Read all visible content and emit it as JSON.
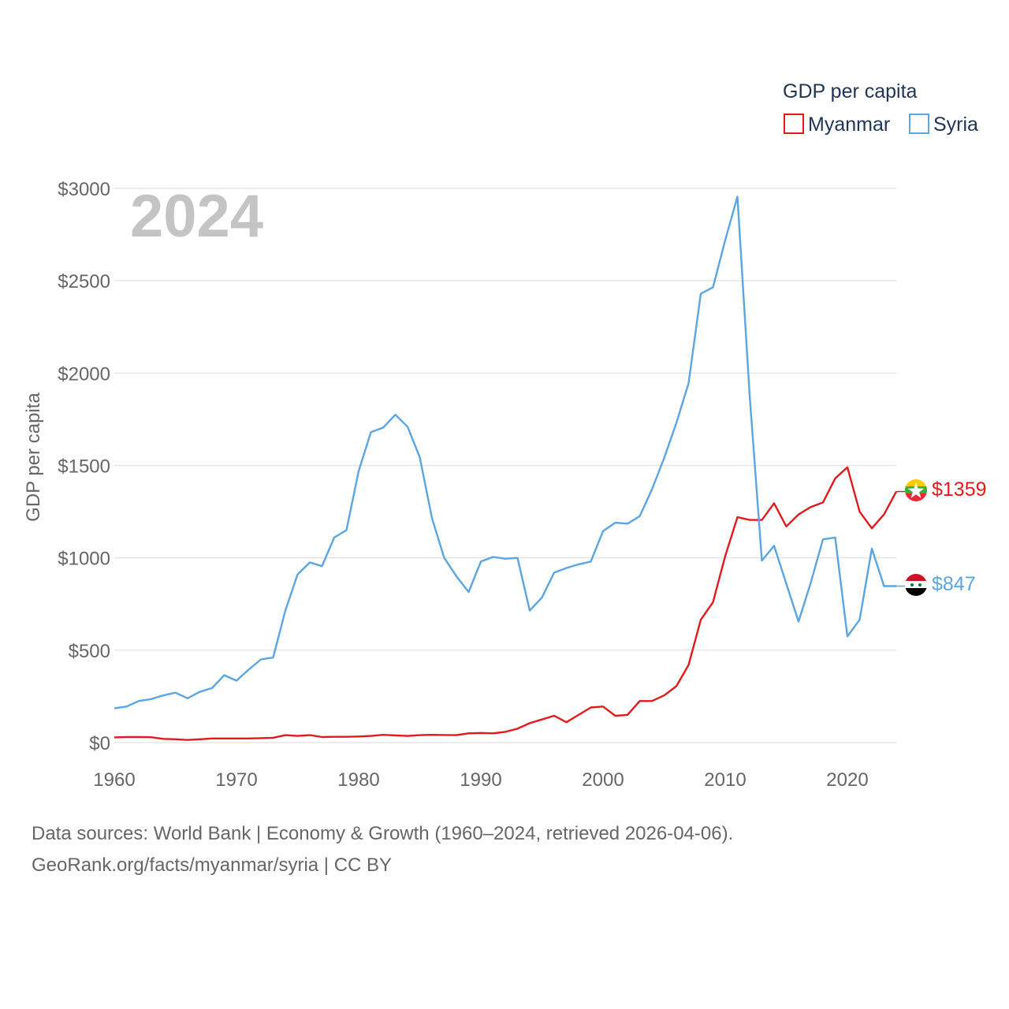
{
  "chart_data": {
    "type": "line",
    "title": "GDP per capita",
    "ylabel": "GDP per capita",
    "xlabel": "",
    "year_label": "2024",
    "xlim": [
      1960,
      2024
    ],
    "ylim": [
      0,
      3000
    ],
    "x_ticks": [
      1960,
      1970,
      1980,
      1990,
      2000,
      2010,
      2020
    ],
    "x_tick_labels": [
      "1960",
      "1970",
      "1980",
      "1990",
      "2000",
      "2010",
      "2020"
    ],
    "y_ticks": [
      0,
      500,
      1000,
      1500,
      2000,
      2500,
      3000
    ],
    "y_tick_labels": [
      "$0",
      "$500",
      "$1000",
      "$1500",
      "$2000",
      "$2500",
      "$3000"
    ],
    "legend_position": "top-right",
    "x": [
      1960,
      1961,
      1962,
      1963,
      1964,
      1965,
      1966,
      1967,
      1968,
      1969,
      1970,
      1971,
      1972,
      1973,
      1974,
      1975,
      1976,
      1977,
      1978,
      1979,
      1980,
      1981,
      1982,
      1983,
      1984,
      1985,
      1986,
      1987,
      1988,
      1989,
      1990,
      1991,
      1992,
      1993,
      1994,
      1995,
      1996,
      1997,
      1998,
      1999,
      2000,
      2001,
      2002,
      2003,
      2004,
      2005,
      2006,
      2007,
      2008,
      2009,
      2010,
      2011,
      2012,
      2013,
      2014,
      2015,
      2016,
      2017,
      2018,
      2019,
      2020,
      2021,
      2022,
      2023,
      2024
    ],
    "series": [
      {
        "name": "Myanmar",
        "color": "#e31a1c",
        "end_label": "$1359",
        "values": [
          28,
          30,
          30,
          29,
          20,
          18,
          14,
          18,
          22,
          22,
          22,
          22,
          24,
          26,
          40,
          36,
          40,
          30,
          31,
          31,
          33,
          36,
          42,
          39,
          36,
          40,
          42,
          41,
          40,
          50,
          52,
          50,
          58,
          75,
          105,
          125,
          145,
          110,
          150,
          190,
          195,
          145,
          150,
          225,
          225,
          255,
          305,
          420,
          665,
          760,
          1010,
          1220,
          1205,
          1205,
          1295,
          1170,
          1235,
          1275,
          1300,
          1430,
          1490,
          1250,
          1160,
          1235,
          1359
        ]
      },
      {
        "name": "Syria",
        "color": "#5aa5e3",
        "end_label": "$847",
        "values": [
          185,
          195,
          225,
          235,
          255,
          270,
          240,
          275,
          295,
          365,
          335,
          395,
          450,
          460,
          715,
          910,
          975,
          955,
          1110,
          1150,
          1470,
          1680,
          1705,
          1775,
          1710,
          1545,
          1215,
          1000,
          900,
          815,
          980,
          1005,
          995,
          1000,
          715,
          785,
          920,
          945,
          965,
          980,
          1145,
          1190,
          1185,
          1225,
          1370,
          1540,
          1730,
          1945,
          2430,
          2465,
          2720,
          2955,
          1880,
          985,
          1065,
          860,
          655,
          865,
          1100,
          1110,
          575,
          665,
          1050,
          847,
          847
        ]
      }
    ]
  },
  "footer": {
    "source": "Data sources: World Bank | Economy & Growth (1960–2024, retrieved 2026-04-06).",
    "credit": "GeoRank.org/facts/myanmar/syria | CC BY"
  }
}
